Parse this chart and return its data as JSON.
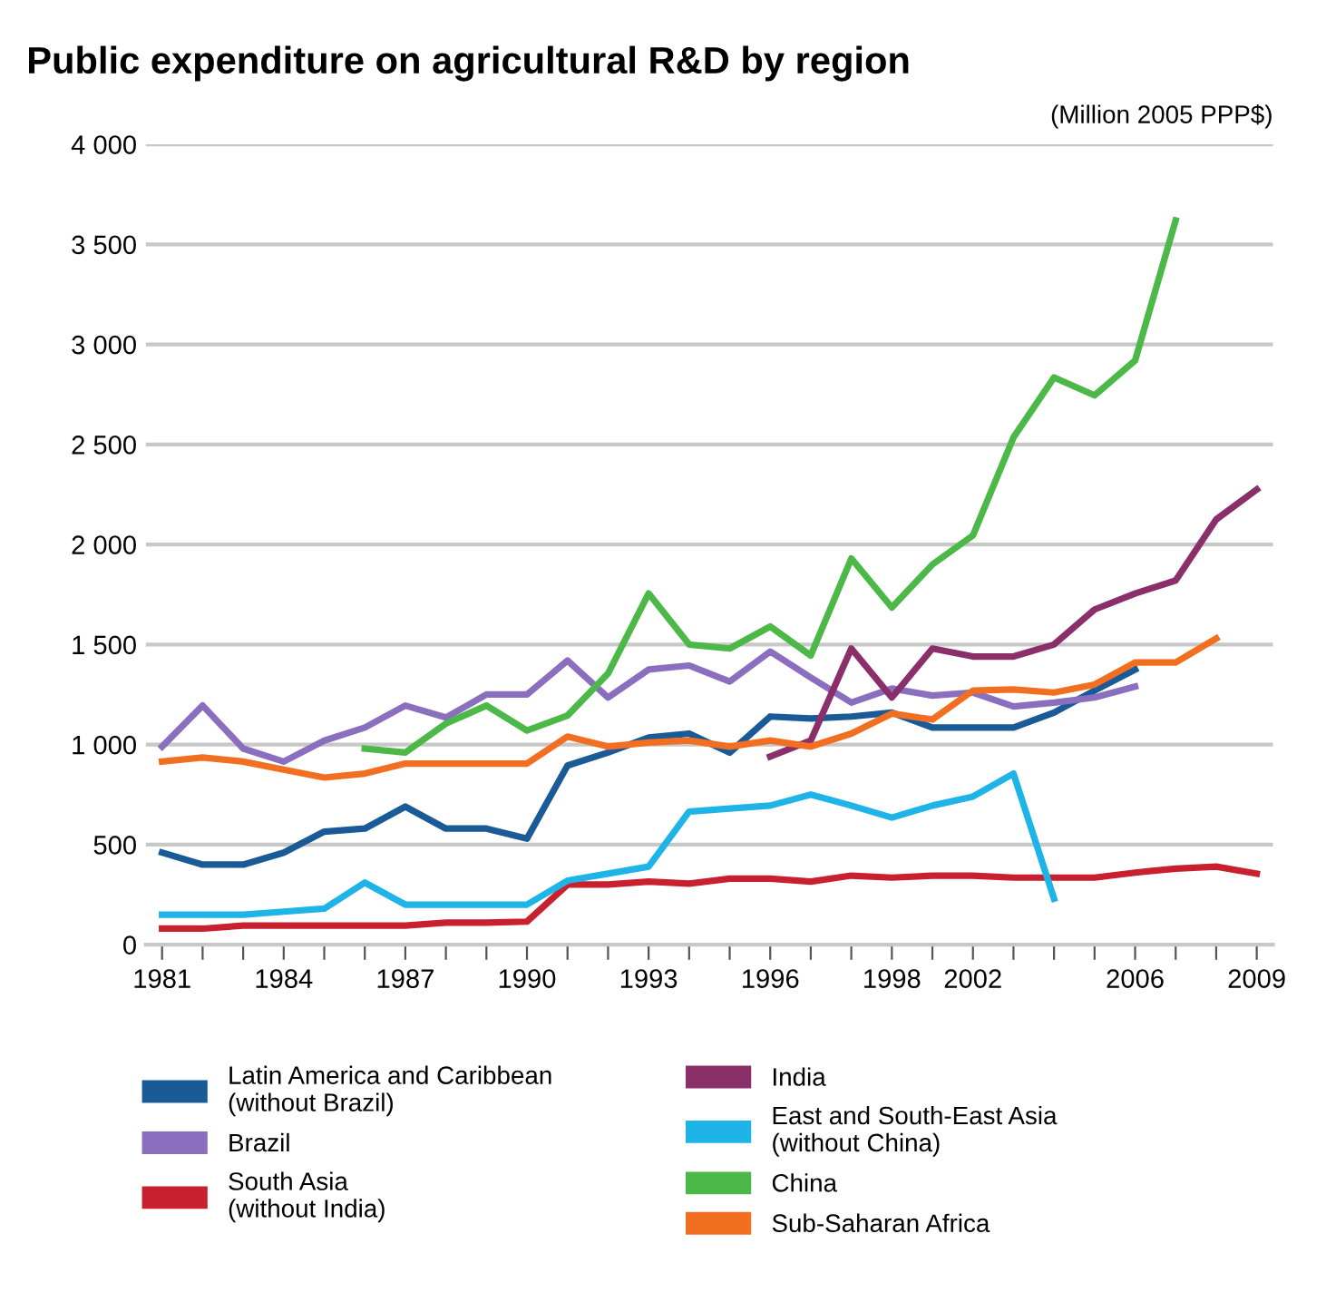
{
  "chart_data": {
    "type": "line",
    "title": "Public expenditure on agricultural R&D by region",
    "ylabel": "(Million 2005 PPP$)",
    "categories": [
      "1981",
      null,
      null,
      "1984",
      null,
      null,
      "1987",
      null,
      null,
      "1990",
      null,
      null,
      "1993",
      null,
      null,
      "1996",
      null,
      null,
      "1998",
      null,
      "2002",
      null,
      null,
      null,
      "2006",
      null,
      null,
      "2009"
    ],
    "ylim": [
      0,
      4000
    ],
    "yticks": [
      0,
      500,
      {
        "value": 1000,
        "label": "1 000"
      },
      {
        "value": 1500,
        "label": "1 500"
      },
      {
        "value": 2000,
        "label": "2 000"
      },
      {
        "value": 2500,
        "label": "2 500"
      },
      {
        "value": 3000,
        "label": "3 000"
      },
      {
        "value": 3500,
        "label": "3 500"
      },
      {
        "value": 4000,
        "label": "4 000"
      }
    ],
    "grid": "y",
    "legend": "bottom",
    "marker": "none",
    "line_style": "solid",
    "series": [
      {
        "name": "Latin America and Caribbean\n(without Brazil)",
        "color": "#1a5a96",
        "values": [
          460,
          400,
          400,
          460,
          565,
          580,
          690,
          580,
          580,
          530,
          895,
          960,
          1035,
          1055,
          960,
          1140,
          1130,
          1140,
          1160,
          1085,
          1085,
          1085,
          1160,
          1270,
          1375,
          null,
          null,
          null
        ]
      },
      {
        "name": "Brazil",
        "color": "#8a6fbf",
        "values": [
          990,
          1195,
          980,
          915,
          1020,
          1085,
          1195,
          1135,
          1250,
          1250,
          1420,
          1235,
          1375,
          1395,
          1315,
          1465,
          1335,
          1210,
          1280,
          1245,
          1260,
          1190,
          1210,
          1235,
          1290,
          null,
          null,
          null
        ]
      },
      {
        "name": "South Asia\n(without India)",
        "color": "#c8202f",
        "values": [
          80,
          80,
          95,
          95,
          95,
          95,
          95,
          110,
          110,
          115,
          300,
          300,
          315,
          305,
          330,
          330,
          315,
          345,
          335,
          345,
          345,
          335,
          335,
          335,
          360,
          380,
          390,
          355
        ]
      },
      {
        "name": "India",
        "color": "#8b2f6b",
        "values": [
          null,
          null,
          null,
          null,
          null,
          null,
          null,
          null,
          null,
          null,
          null,
          null,
          null,
          null,
          null,
          940,
          1020,
          1480,
          1235,
          1480,
          1440,
          1440,
          1500,
          1675,
          1755,
          1820,
          2125,
          2275
        ]
      },
      {
        "name": "East and South-East Asia\n(without China)",
        "color": "#1eb4e8",
        "values": [
          150,
          150,
          150,
          165,
          180,
          310,
          200,
          200,
          200,
          200,
          320,
          355,
          390,
          665,
          680,
          695,
          750,
          695,
          635,
          695,
          740,
          855,
          230,
          null,
          null,
          null,
          null,
          null
        ]
      },
      {
        "name": "China",
        "color": "#4cb848",
        "values": [
          null,
          null,
          null,
          null,
          null,
          980,
          960,
          1105,
          1195,
          1070,
          1145,
          1355,
          1755,
          1500,
          1480,
          1590,
          1445,
          1930,
          1685,
          1900,
          2045,
          2535,
          2835,
          2745,
          2920,
          3620,
          null,
          null
        ]
      },
      {
        "name": "Sub-Saharan Africa",
        "color": "#f26f22",
        "values": [
          915,
          935,
          915,
          875,
          835,
          855,
          905,
          905,
          905,
          905,
          1040,
          990,
          1010,
          1020,
          990,
          1020,
          990,
          1055,
          1155,
          1125,
          1270,
          1275,
          1260,
          1300,
          1410,
          1410,
          1530,
          null
        ]
      }
    ]
  }
}
